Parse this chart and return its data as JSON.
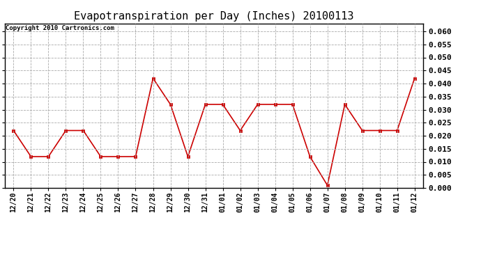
{
  "title": "Evapotranspiration per Day (Inches) 20100113",
  "copyright_text": "Copyright 2010 Cartronics.com",
  "x_labels": [
    "12/20",
    "12/21",
    "12/22",
    "12/23",
    "12/24",
    "12/25",
    "12/26",
    "12/27",
    "12/28",
    "12/29",
    "12/30",
    "12/31",
    "01/01",
    "01/02",
    "01/03",
    "01/04",
    "01/05",
    "01/06",
    "01/07",
    "01/08",
    "01/09",
    "01/10",
    "01/11",
    "01/12"
  ],
  "y_values": [
    0.022,
    0.012,
    0.012,
    0.022,
    0.022,
    0.012,
    0.012,
    0.012,
    0.042,
    0.032,
    0.012,
    0.032,
    0.032,
    0.022,
    0.032,
    0.032,
    0.032,
    0.012,
    0.001,
    0.032,
    0.022,
    0.022,
    0.022,
    0.042
  ],
  "line_color": "#cc0000",
  "marker": "s",
  "marker_size": 3,
  "ylim": [
    0.0,
    0.063
  ],
  "yticks": [
    0.0,
    0.005,
    0.01,
    0.015,
    0.02,
    0.025,
    0.03,
    0.035,
    0.04,
    0.045,
    0.05,
    0.055,
    0.06
  ],
  "grid_color": "#aaaaaa",
  "bg_color": "#ffffff",
  "title_fontsize": 11,
  "copyright_fontsize": 6.5,
  "tick_fontsize": 7,
  "ytick_fontsize": 8
}
